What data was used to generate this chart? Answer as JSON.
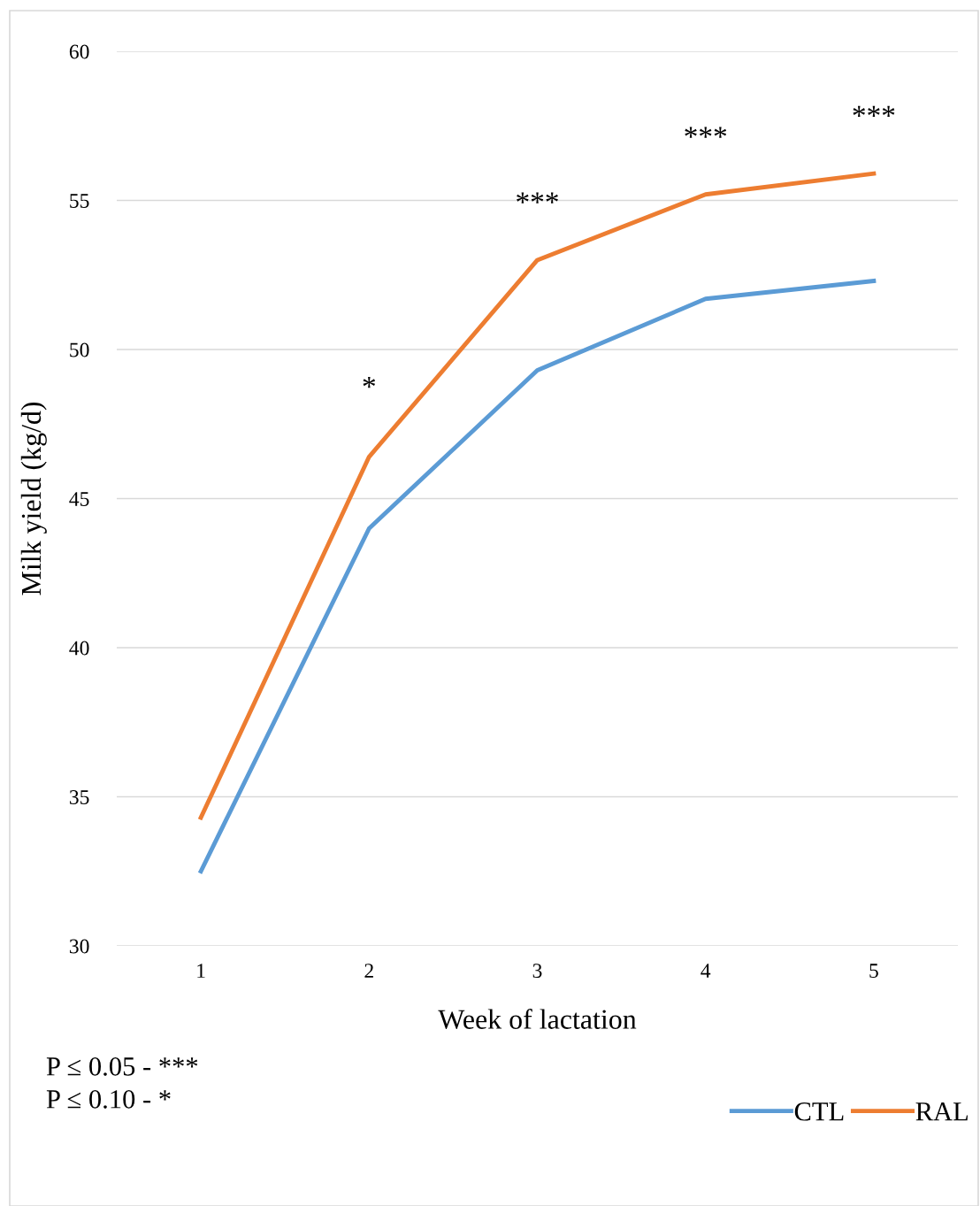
{
  "chart_data": {
    "type": "line",
    "xlabel": "Week of lactation",
    "ylabel": "Milk yield (kg/d)",
    "categories": [
      "1",
      "2",
      "3",
      "4",
      "5"
    ],
    "series": [
      {
        "name": "CTL",
        "color": "#5b9bd5",
        "values": [
          32.5,
          44.0,
          49.3,
          51.7,
          52.3
        ]
      },
      {
        "name": "RAL",
        "color": "#ed7d31",
        "values": [
          34.3,
          46.4,
          53.0,
          55.2,
          55.9
        ]
      }
    ],
    "ylim": [
      30,
      60
    ],
    "yticks": [
      30,
      35,
      40,
      45,
      50,
      55,
      60
    ],
    "grid": "y",
    "legend": "bottom right",
    "marker": "none",
    "line_style": "solid",
    "annotations": [
      "*",
      "***",
      "***",
      "***",
      "P ≤ 0.05 - ***",
      "P ≤ 0.10 - *"
    ]
  }
}
